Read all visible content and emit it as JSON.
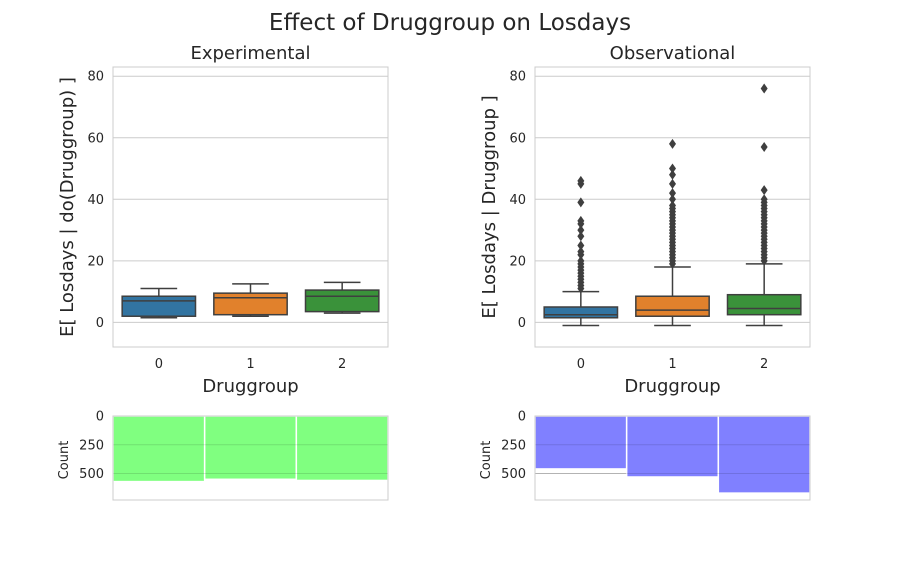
{
  "chart_data": {
    "title": "Effect of Druggroup on Losdays",
    "panels": [
      {
        "type": "box",
        "title": "Experimental",
        "xlabel": "Druggroup",
        "ylabel": "E[ Losdays | do(Druggroup) ]",
        "categories": [
          "0",
          "1",
          "2"
        ],
        "ylim": [
          -8,
          83
        ],
        "yticks": [
          0,
          20,
          40,
          60,
          80
        ],
        "colors": [
          "#3274a1",
          "#e1812c",
          "#3a923a"
        ],
        "boxes": [
          {
            "min": 1.5,
            "q1": 2,
            "median": 7,
            "q3": 8.5,
            "max": 11,
            "outliers": []
          },
          {
            "min": 2,
            "q1": 2.5,
            "median": 8,
            "q3": 9.5,
            "max": 12.5,
            "outliers": []
          },
          {
            "min": 3,
            "q1": 3.5,
            "median": 8.5,
            "q3": 10.5,
            "max": 13,
            "outliers": []
          }
        ]
      },
      {
        "type": "box",
        "title": "Observational",
        "xlabel": "Druggroup",
        "ylabel": "E[ Losdays | Druggroup ]",
        "categories": [
          "0",
          "1",
          "2"
        ],
        "ylim": [
          -8,
          83
        ],
        "yticks": [
          0,
          20,
          40,
          60,
          80
        ],
        "colors": [
          "#3274a1",
          "#e1812c",
          "#3a923a"
        ],
        "boxes": [
          {
            "min": -1,
            "q1": 1.5,
            "median": 2.5,
            "q3": 5,
            "max": 10,
            "outliers": [
              11,
              12,
              13,
              14,
              15,
              16,
              17,
              18,
              19,
              20,
              22,
              23,
              25,
              28,
              30,
              32,
              33,
              39,
              45,
              46
            ]
          },
          {
            "min": -1,
            "q1": 2,
            "median": 4,
            "q3": 8.5,
            "max": 18,
            "outliers": [
              19,
              20,
              21,
              22,
              23,
              24,
              25,
              26,
              27,
              28,
              29,
              30,
              31,
              32,
              33,
              34,
              35,
              36,
              37,
              38,
              40,
              42,
              45,
              48,
              50,
              58
            ]
          },
          {
            "min": -1,
            "q1": 2.5,
            "median": 4.5,
            "q3": 9,
            "max": 19,
            "outliers": [
              20,
              21,
              22,
              23,
              24,
              25,
              26,
              27,
              28,
              29,
              30,
              31,
              32,
              33,
              34,
              35,
              36,
              37,
              38,
              39,
              40,
              43,
              57,
              76
            ]
          }
        ]
      },
      {
        "type": "bar",
        "ylabel": "Count",
        "categories": [
          "0",
          "1",
          "2"
        ],
        "values": [
          570,
          550,
          560
        ],
        "ylim": [
          0,
          730
        ],
        "yticks": [
          0,
          250,
          500
        ],
        "inverted": true,
        "color": "#80ff80"
      },
      {
        "type": "bar",
        "ylabel": "Count",
        "categories": [
          "0",
          "1",
          "2"
        ],
        "values": [
          460,
          530,
          670
        ],
        "ylim": [
          0,
          730
        ],
        "yticks": [
          0,
          250,
          500
        ],
        "inverted": true,
        "color": "#8080ff"
      }
    ]
  }
}
